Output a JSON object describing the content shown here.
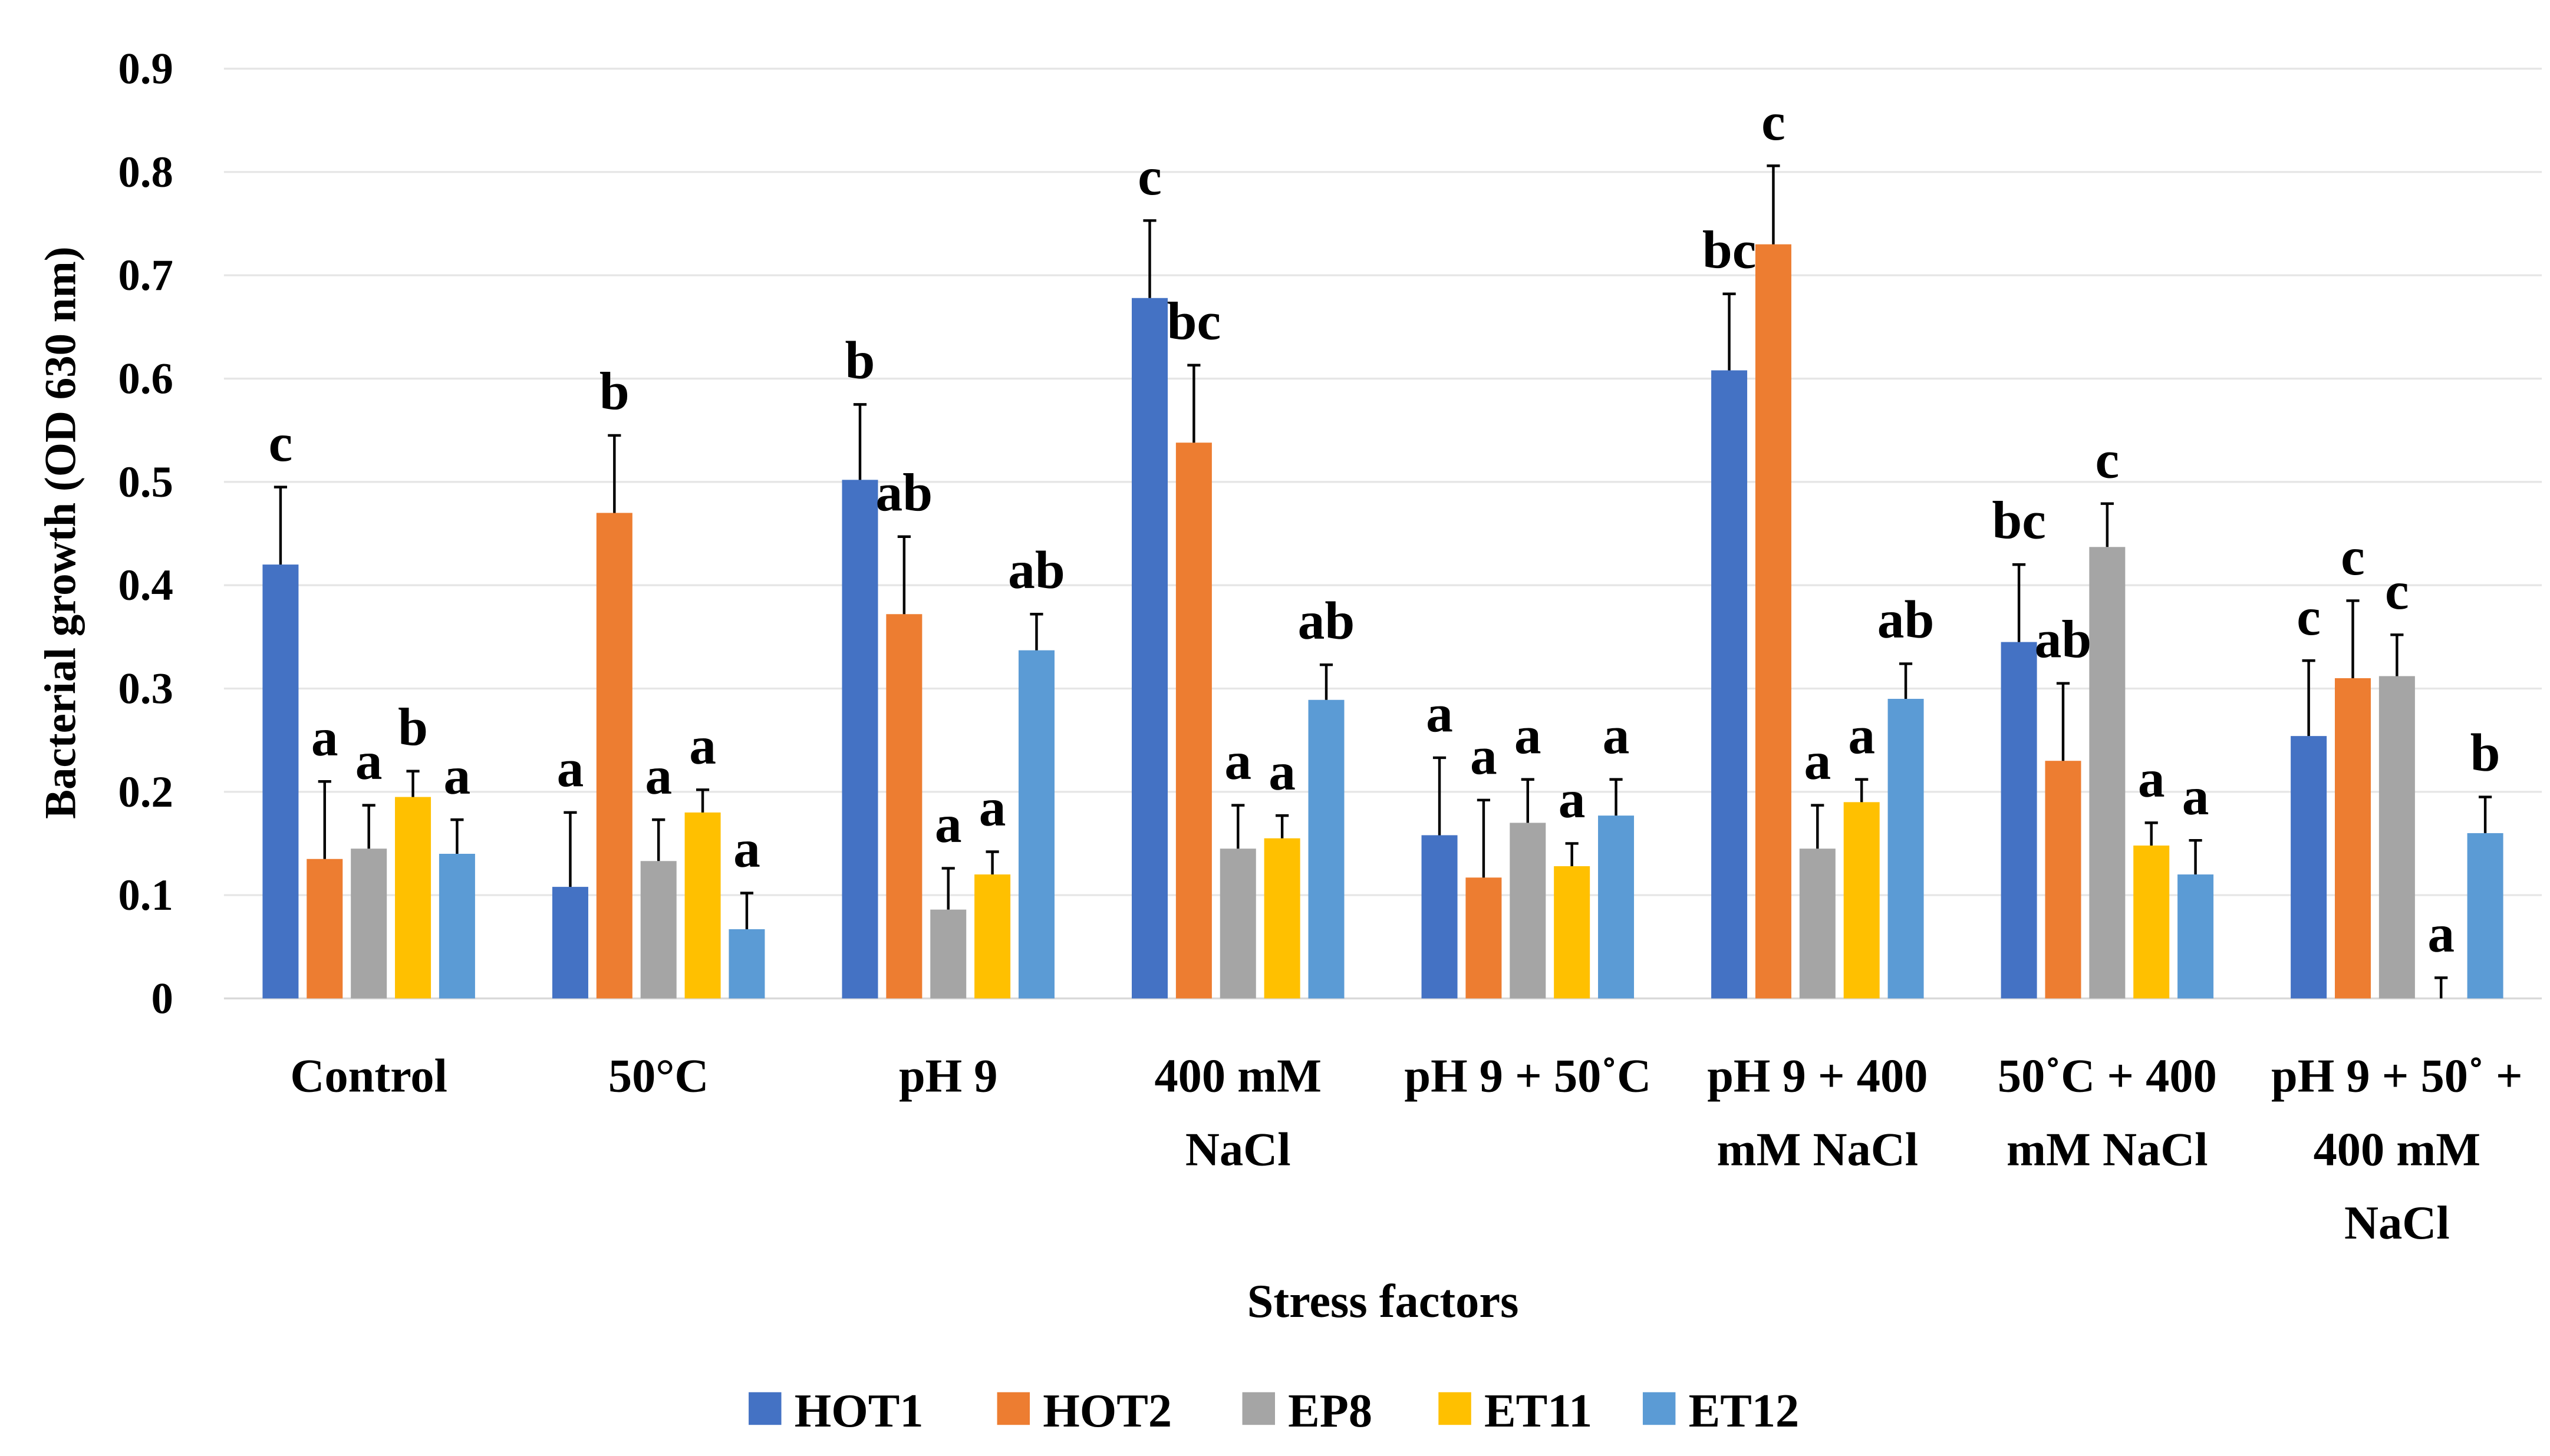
{
  "chart_data": {
    "type": "bar",
    "title": "",
    "xlabel": "Stress factors",
    "ylabel": "Bacterial growth (OD 630 nm)",
    "ylim": [
      0,
      0.9
    ],
    "yticks": [
      "0",
      "0.1",
      "0.2",
      "0.3",
      "0.4",
      "0.5",
      "0.6",
      "0.7",
      "0.8",
      "0.9"
    ],
    "grid": true,
    "legend_position": "bottom",
    "categories": [
      [
        "Control"
      ],
      [
        "50°C"
      ],
      [
        "pH 9"
      ],
      [
        "400 mM",
        "NaCl"
      ],
      [
        "pH 9 + 50˚C"
      ],
      [
        "pH 9 + 400",
        "mM NaCl"
      ],
      [
        "50˚C + 400",
        "mM NaCl"
      ],
      [
        "pH 9 + 50˚ +",
        "400 mM",
        "NaCl"
      ]
    ],
    "series": [
      {
        "name": "HOT1",
        "color": "#4472C4",
        "values": [
          0.42,
          0.108,
          0.502,
          0.678,
          0.158,
          0.608,
          0.345,
          0.254
        ],
        "errors": [
          0.075,
          0.072,
          0.073,
          0.075,
          0.075,
          0.074,
          0.075,
          0.073
        ],
        "letters": [
          "c",
          "a",
          "b",
          "c",
          "a",
          "bc",
          "bc",
          "c"
        ]
      },
      {
        "name": "HOT2",
        "color": "#ED7D31",
        "values": [
          0.135,
          0.47,
          0.372,
          0.538,
          0.117,
          0.73,
          0.23,
          0.31
        ],
        "errors": [
          0.075,
          0.075,
          0.075,
          0.075,
          0.075,
          0.076,
          0.075,
          0.075
        ],
        "letters": [
          "a",
          "b",
          "ab",
          "bc",
          "a",
          "c",
          "ab",
          "c"
        ]
      },
      {
        "name": "EP8",
        "color": "#A5A5A5",
        "values": [
          0.145,
          0.133,
          0.086,
          0.145,
          0.17,
          0.145,
          0.437,
          0.312
        ],
        "errors": [
          0.042,
          0.04,
          0.04,
          0.042,
          0.042,
          0.042,
          0.042,
          0.04
        ],
        "letters": [
          "a",
          "a",
          "a",
          "a",
          "a",
          "a",
          "c",
          "c"
        ]
      },
      {
        "name": "ET11",
        "color": "#FFC000",
        "values": [
          0.195,
          0.18,
          0.12,
          0.155,
          0.128,
          0.19,
          0.148,
          0.0
        ],
        "errors": [
          0.025,
          0.022,
          0.022,
          0.022,
          0.022,
          0.022,
          0.022,
          0.02
        ],
        "letters": [
          "b",
          "a",
          "a",
          "a",
          "a",
          "a",
          "a",
          "a"
        ]
      },
      {
        "name": "ET12",
        "color": "#5B9BD5",
        "values": [
          0.14,
          0.067,
          0.337,
          0.289,
          0.177,
          0.29,
          0.12,
          0.16
        ],
        "errors": [
          0.033,
          0.035,
          0.035,
          0.034,
          0.035,
          0.034,
          0.033,
          0.035
        ],
        "letters": [
          "a",
          "a",
          "ab",
          "ab",
          "a",
          "ab",
          "a",
          "b"
        ]
      }
    ]
  }
}
